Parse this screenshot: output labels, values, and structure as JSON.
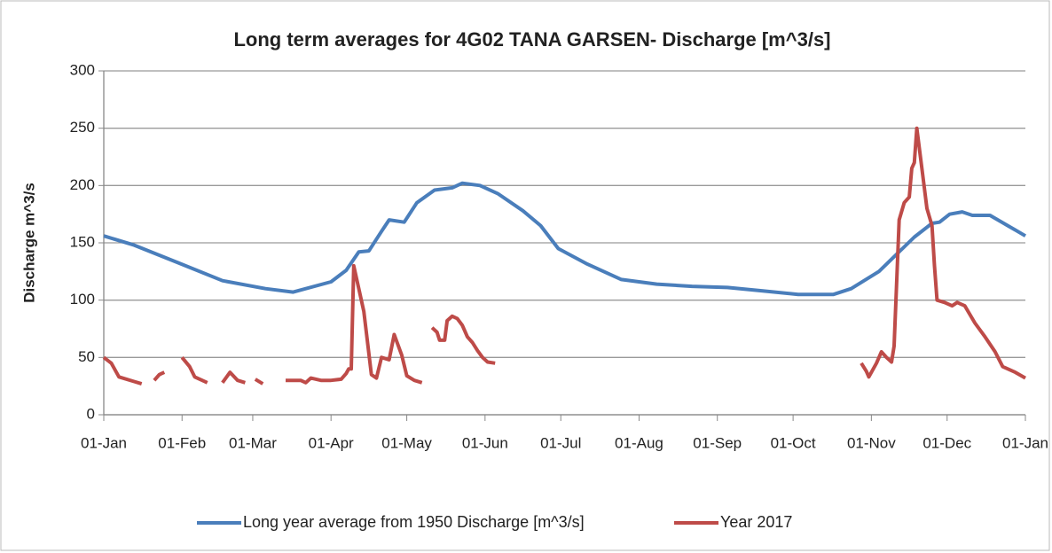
{
  "chart_data": {
    "type": "line",
    "title": "Long term averages for 4G02 TANA GARSEN- Discharge [m^3/s]",
    "y_label": "Discharge m^3/s",
    "xlim": [
      0,
      365
    ],
    "xticks": [
      {
        "value": 0,
        "label": "01-Jan"
      },
      {
        "value": 31,
        "label": "01-Feb"
      },
      {
        "value": 59,
        "label": "01-Mar"
      },
      {
        "value": 90,
        "label": "01-Apr"
      },
      {
        "value": 120,
        "label": "01-May"
      },
      {
        "value": 151,
        "label": "01-Jun"
      },
      {
        "value": 181,
        "label": "01-Jul"
      },
      {
        "value": 212,
        "label": "01-Aug"
      },
      {
        "value": 243,
        "label": "01-Sep"
      },
      {
        "value": 273,
        "label": "01-Oct"
      },
      {
        "value": 304,
        "label": "01-Nov"
      },
      {
        "value": 334,
        "label": "01-Dec"
      },
      {
        "value": 365,
        "label": "01-Jan"
      }
    ],
    "ylim": [
      0,
      300
    ],
    "yticks": [
      0,
      50,
      100,
      150,
      200,
      250,
      300
    ],
    "grid": true,
    "legend": "bottom",
    "series": [
      {
        "name": "Long year average from 1950 Discharge [m^3/s]",
        "color": "#4a7ebb",
        "x": [
          0,
          12,
          29,
          47,
          64,
          75,
          90,
          96,
          101,
          105,
          110,
          113,
          119,
          124,
          131,
          138,
          142,
          149,
          156,
          166,
          173,
          180,
          191,
          205,
          219,
          233,
          247,
          261,
          275,
          289,
          296,
          307,
          314,
          321,
          328,
          331,
          335,
          340,
          344,
          351,
          358,
          365
        ],
        "values": [
          156,
          148,
          133,
          117,
          110,
          107,
          116,
          126,
          142,
          143,
          160,
          170,
          168,
          185,
          196,
          198,
          202,
          200,
          193,
          178,
          165,
          145,
          132,
          118,
          114,
          112,
          111,
          108,
          105,
          105,
          110,
          125,
          140,
          155,
          167,
          168,
          175,
          177,
          174,
          174,
          165,
          156
        ]
      },
      {
        "name": "Year  2017",
        "color": "#be4b48",
        "x": [
          0,
          3,
          6,
          12,
          15,
          17,
          20,
          22,
          24,
          28,
          31,
          34,
          36,
          41,
          44,
          47,
          50,
          53,
          56,
          58,
          60,
          63,
          66,
          72,
          78,
          80,
          82,
          86,
          90,
          94,
          96,
          97,
          98,
          99,
          101,
          103,
          106,
          108,
          110,
          113,
          115,
          118,
          120,
          123,
          126,
          128,
          130,
          132,
          133,
          135,
          136,
          138,
          140,
          142,
          144,
          146,
          148,
          150,
          152,
          155,
          200,
          300,
          302,
          303,
          306,
          308,
          310,
          312,
          313,
          315,
          317,
          319,
          320,
          321,
          322,
          324,
          326,
          328,
          329,
          330,
          333,
          336,
          338,
          341,
          345,
          349,
          353,
          356,
          361,
          365
        ],
        "values": [
          50,
          45,
          33,
          29,
          27,
          null,
          30,
          35,
          37,
          null,
          50,
          42,
          33,
          28,
          null,
          28,
          37,
          30,
          28,
          null,
          31,
          27,
          null,
          30,
          30,
          28,
          32,
          30,
          30,
          31,
          36,
          40,
          40,
          130,
          110,
          90,
          35,
          32,
          50,
          48,
          70,
          52,
          34,
          30,
          28,
          null,
          76,
          72,
          65,
          65,
          82,
          86,
          84,
          78,
          68,
          63,
          56,
          50,
          46,
          45,
          null,
          45,
          38,
          33,
          45,
          55,
          50,
          46,
          60,
          170,
          185,
          190,
          215,
          220,
          250,
          215,
          180,
          165,
          130,
          100,
          98,
          95,
          98,
          95,
          80,
          68,
          55,
          42,
          37,
          32
        ]
      }
    ]
  }
}
